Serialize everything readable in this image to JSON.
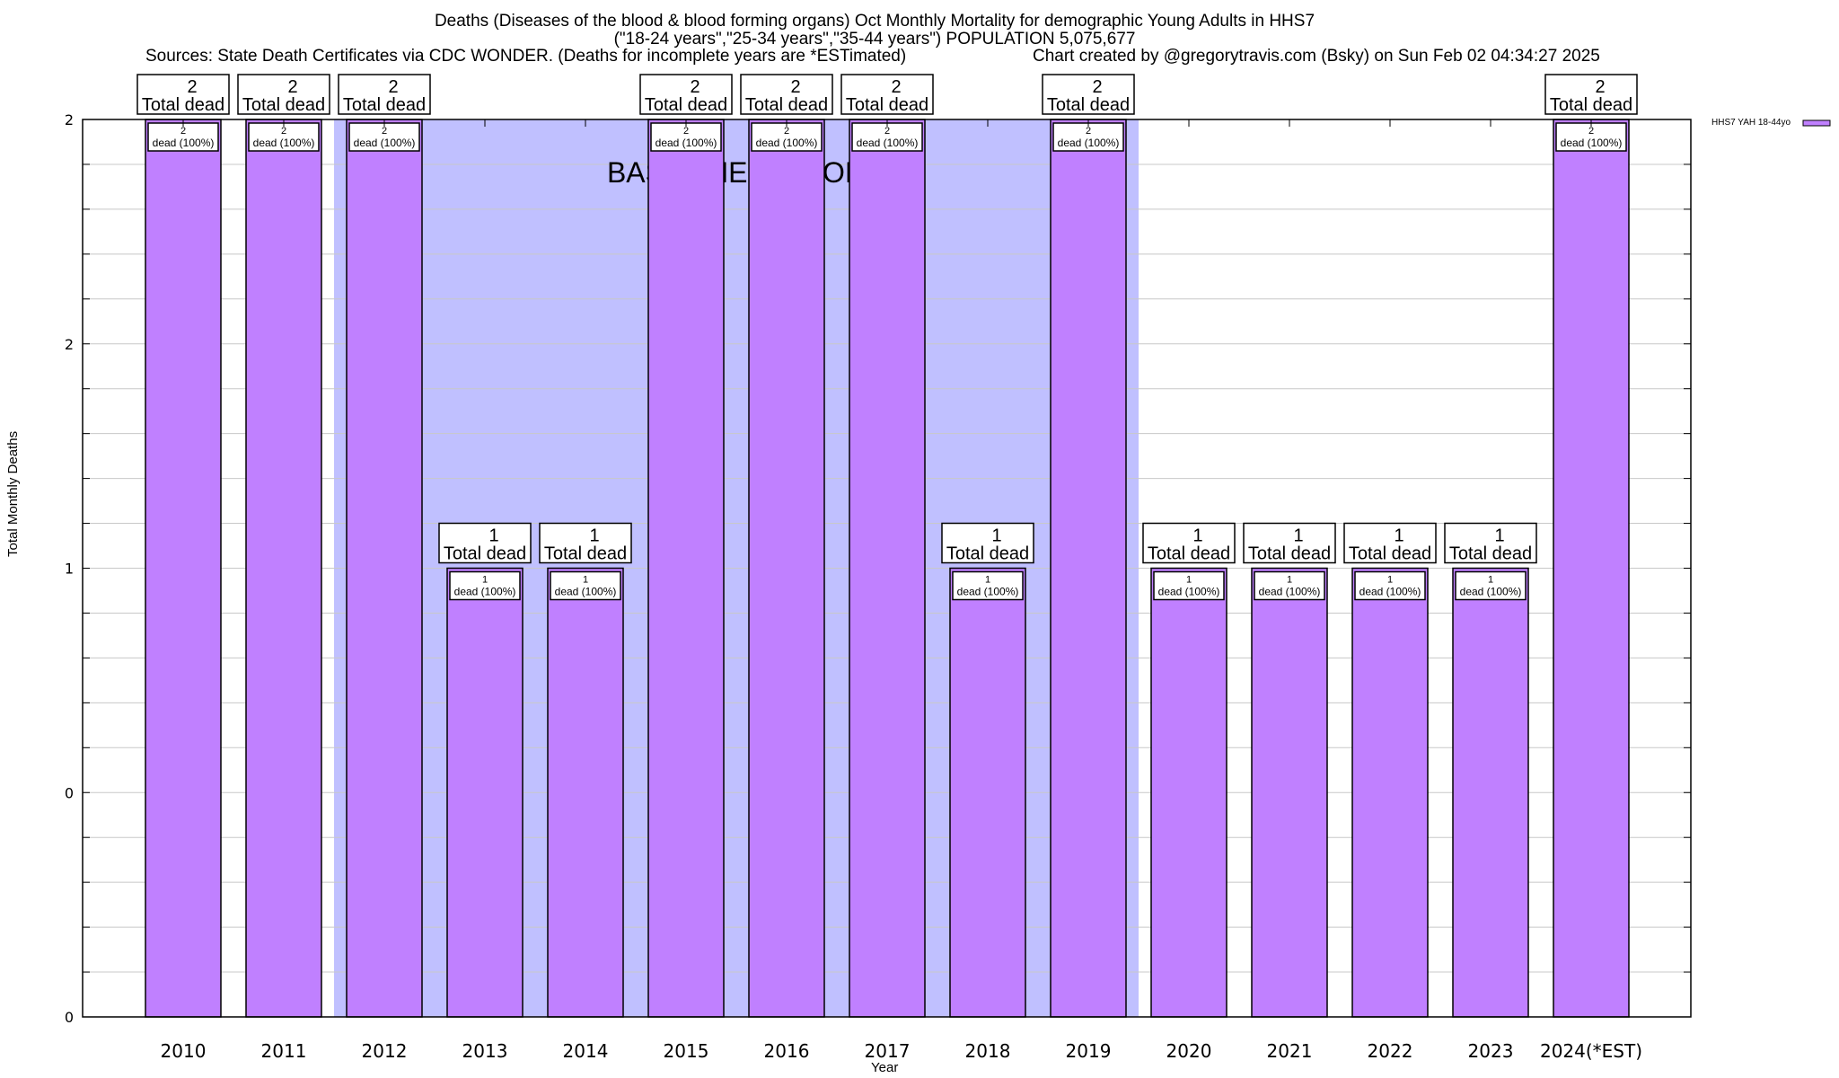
{
  "chart_data": {
    "type": "bar",
    "title_lines": [
      "Deaths (Diseases of the blood & blood forming organs) Oct Monthly Mortality for demographic Young Adults in HHS7",
      "(\"18-24 years\",\"25-34 years\",\"35-44 years\") POPULATION 5,075,677",
      "Sources: State Death Certificates via CDC WONDER. (Deaths for incomplete years are *ESTimated)",
      "Chart created by @gregorytravis.com (Bsky) on Sun Feb 02 04:34:27 2025"
    ],
    "xlabel": "Year",
    "ylabel": "Total Monthly Deaths",
    "categories": [
      "2010",
      "2011",
      "2012",
      "2013",
      "2014",
      "2015",
      "2016",
      "2017",
      "2018",
      "2019",
      "2020",
      "2021",
      "2022",
      "2023",
      "2024(*EST)"
    ],
    "series": [
      {
        "name": "HHS7 YAH 18-44yo",
        "color": "#c080ff",
        "values": [
          2,
          2,
          2,
          1,
          1,
          2,
          2,
          2,
          1,
          2,
          1,
          1,
          1,
          1,
          2
        ]
      }
    ],
    "ylim": [
      0,
      2
    ],
    "ytick_values": [
      0,
      0.5,
      1,
      1.5,
      2
    ],
    "ytick_labels": [
      "0",
      "0",
      "1",
      "2",
      "2"
    ],
    "grid": true,
    "legend_position": "top-right-outside",
    "annotations": {
      "total_label_suffix": "Total dead",
      "inner_label_suffix": "dead (100%)",
      "baseline_text": "BASELINE PERIOD",
      "baseline_range": [
        "2012",
        "2019"
      ],
      "baseline_color": "#c0c0ff"
    }
  }
}
